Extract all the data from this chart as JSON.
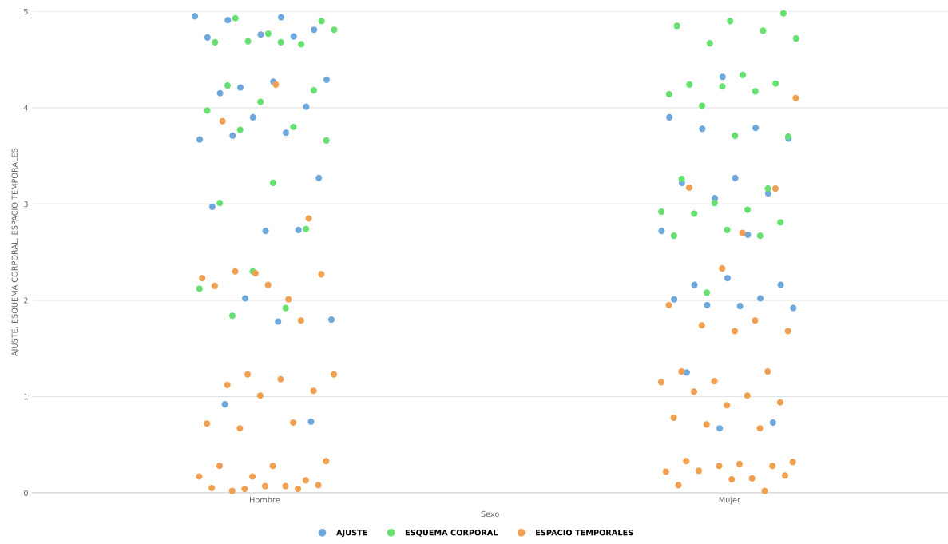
{
  "chart_data": {
    "type": "scatter",
    "xlabel": "Sexo",
    "ylabel": "AJUSTE, ESQUEMA CORPORAL, ESPACIO TEMPORALES",
    "categories": [
      "Hombre",
      "Mujer"
    ],
    "ylim": [
      0,
      5
    ],
    "yticks": [
      0,
      1,
      2,
      3,
      4,
      5
    ],
    "grid": "y",
    "legend": "bottom",
    "marker": "circle",
    "series": [
      {
        "name": "AJUSTE",
        "color": "#6fa8dc",
        "x": [
          "Hombre",
          "Hombre",
          "Hombre",
          "Hombre",
          "Hombre",
          "Hombre",
          "Hombre",
          "Hombre",
          "Hombre",
          "Hombre",
          "Hombre",
          "Hombre",
          "Hombre",
          "Hombre",
          "Hombre",
          "Hombre",
          "Hombre",
          "Hombre",
          "Hombre",
          "Hombre",
          "Hombre",
          "Hombre",
          "Hombre",
          "Hombre",
          "Hombre",
          "Mujer",
          "Mujer",
          "Mujer",
          "Mujer",
          "Mujer",
          "Mujer",
          "Mujer",
          "Mujer",
          "Mujer",
          "Mujer",
          "Mujer",
          "Mujer",
          "Mujer",
          "Mujer",
          "Mujer",
          "Mujer",
          "Mujer",
          "Mujer",
          "Mujer",
          "Mujer",
          "Mujer",
          "Mujer"
        ],
        "values": [
          4.95,
          4.94,
          4.91,
          4.81,
          4.76,
          4.73,
          4.74,
          4.21,
          4.29,
          4.27,
          4.15,
          4.01,
          3.9,
          3.67,
          3.74,
          3.71,
          3.27,
          2.72,
          2.97,
          2.73,
          2.02,
          1.8,
          1.78,
          0.92,
          0.74,
          4.32,
          3.9,
          3.79,
          3.78,
          3.68,
          3.27,
          3.22,
          3.11,
          3.06,
          2.72,
          2.68,
          2.16,
          2.16,
          2.23,
          2.01,
          2.02,
          1.95,
          1.92,
          1.94,
          1.25,
          0.73,
          0.67
        ]
      },
      {
        "name": "ESQUEMA CORPORAL",
        "color": "#66e070",
        "x": [
          "Hombre",
          "Hombre",
          "Hombre",
          "Hombre",
          "Hombre",
          "Hombre",
          "Hombre",
          "Hombre",
          "Hombre",
          "Hombre",
          "Hombre",
          "Hombre",
          "Hombre",
          "Hombre",
          "Hombre",
          "Hombre",
          "Hombre",
          "Hombre",
          "Hombre",
          "Hombre",
          "Hombre",
          "Hombre",
          "Mujer",
          "Mujer",
          "Mujer",
          "Mujer",
          "Mujer",
          "Mujer",
          "Mujer",
          "Mujer",
          "Mujer",
          "Mujer",
          "Mujer",
          "Mujer",
          "Mujer",
          "Mujer",
          "Mujer",
          "Mujer",
          "Mujer",
          "Mujer",
          "Mujer",
          "Mujer",
          "Mujer",
          "Mujer",
          "Mujer",
          "Mujer",
          "Mujer",
          "Mujer"
        ],
        "values": [
          4.93,
          4.9,
          4.77,
          4.68,
          4.66,
          4.69,
          4.81,
          4.68,
          4.23,
          4.18,
          4.06,
          3.97,
          3.8,
          3.77,
          3.66,
          3.22,
          3.01,
          2.74,
          2.3,
          2.12,
          1.92,
          1.84,
          4.98,
          4.9,
          4.85,
          4.8,
          4.67,
          4.72,
          4.34,
          4.24,
          4.25,
          4.22,
          4.14,
          4.17,
          4.02,
          3.7,
          3.71,
          3.26,
          3.16,
          3.01,
          2.92,
          2.94,
          2.9,
          2.81,
          2.73,
          2.67,
          2.67,
          2.08
        ]
      },
      {
        "name": "ESPACIO TEMPORALES",
        "color": "#f0a050",
        "x": [
          "Hombre",
          "Hombre",
          "Hombre",
          "Hombre",
          "Hombre",
          "Hombre",
          "Hombre",
          "Hombre",
          "Hombre",
          "Hombre",
          "Hombre",
          "Hombre",
          "Hombre",
          "Hombre",
          "Hombre",
          "Hombre",
          "Hombre",
          "Hombre",
          "Hombre",
          "Hombre",
          "Hombre",
          "Hombre",
          "Hombre",
          "Hombre",
          "Hombre",
          "Hombre",
          "Hombre",
          "Hombre",
          "Hombre",
          "Hombre",
          "Hombre",
          "Hombre",
          "Hombre",
          "Mujer",
          "Mujer",
          "Mujer",
          "Mujer",
          "Mujer",
          "Mujer",
          "Mujer",
          "Mujer",
          "Mujer",
          "Mujer",
          "Mujer",
          "Mujer",
          "Mujer",
          "Mujer",
          "Mujer",
          "Mujer",
          "Mujer",
          "Mujer",
          "Mujer",
          "Mujer",
          "Mujer",
          "Mujer",
          "Mujer",
          "Mujer",
          "Mujer",
          "Mujer",
          "Mujer",
          "Mujer",
          "Mujer",
          "Mujer",
          "Mujer",
          "Mujer",
          "Mujer"
        ],
        "values": [
          4.24,
          3.86,
          2.85,
          2.28,
          2.23,
          2.01,
          2.3,
          2.27,
          2.16,
          2.15,
          1.79,
          1.23,
          1.23,
          1.18,
          1.12,
          1.06,
          1.01,
          0.72,
          0.73,
          0.67,
          0.33,
          0.28,
          0.28,
          0.13,
          0.17,
          0.17,
          0.07,
          0.02,
          0.08,
          0.07,
          0.05,
          0.04,
          0.04,
          4.1,
          2.7,
          3.17,
          3.16,
          2.33,
          1.95,
          1.79,
          1.74,
          1.68,
          1.68,
          1.26,
          1.26,
          1.16,
          1.15,
          1.01,
          1.05,
          0.94,
          0.91,
          0.78,
          0.67,
          0.71,
          0.32,
          0.3,
          0.33,
          0.28,
          0.28,
          0.22,
          0.15,
          0.23,
          0.18,
          0.14,
          0.08,
          0.02
        ]
      }
    ]
  }
}
